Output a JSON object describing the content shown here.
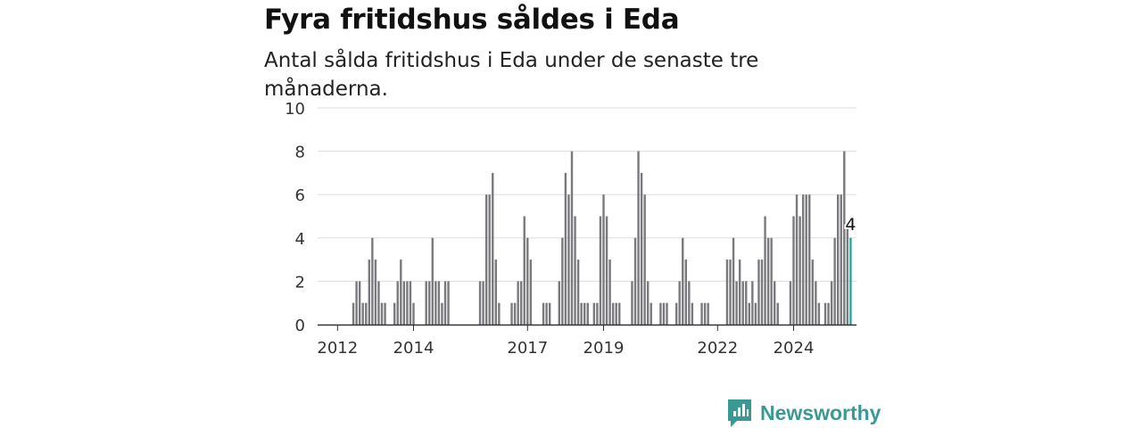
{
  "title": "Fyra fritidshus såldes i Eda",
  "subtitle": "Antal sålda fritidshus i Eda under de senaste tre månaderna.",
  "brand": "Newsworthy",
  "colors": {
    "bar": "#7a7a7e",
    "highlight": "#2aa39a",
    "brand": "#3a9a93",
    "grid": "#dddddd"
  },
  "chart_data": {
    "type": "bar",
    "title": "",
    "xlabel": "",
    "ylabel": "",
    "ylim": [
      0,
      10
    ],
    "yticks": [
      0,
      2,
      4,
      6,
      8,
      10
    ],
    "grid": true,
    "x_start": "2011-07",
    "x_step": "month",
    "xticks": [
      "2012",
      "2014",
      "2017",
      "2019",
      "2022",
      "2024"
    ],
    "highlight_label": "4",
    "values": [
      0,
      0,
      0,
      0,
      0,
      0,
      0,
      0,
      0,
      0,
      0,
      1,
      2,
      2,
      1,
      1,
      3,
      4,
      3,
      2,
      1,
      1,
      0,
      0,
      1,
      2,
      3,
      2,
      2,
      2,
      1,
      0,
      0,
      0,
      2,
      2,
      4,
      2,
      2,
      1,
      2,
      2,
      0,
      0,
      0,
      0,
      0,
      0,
      0,
      0,
      0,
      2,
      2,
      6,
      6,
      7,
      3,
      1,
      0,
      0,
      0,
      1,
      1,
      2,
      2,
      5,
      4,
      3,
      0,
      0,
      0,
      1,
      1,
      1,
      0,
      0,
      2,
      4,
      7,
      6,
      8,
      5,
      3,
      1,
      1,
      1,
      0,
      1,
      1,
      5,
      6,
      5,
      3,
      1,
      1,
      1,
      0,
      0,
      0,
      2,
      4,
      8,
      7,
      6,
      2,
      1,
      0,
      0,
      1,
      1,
      1,
      0,
      0,
      1,
      2,
      4,
      3,
      2,
      1,
      0,
      0,
      1,
      1,
      1,
      0,
      0,
      0,
      0,
      0,
      3,
      3,
      4,
      2,
      3,
      2,
      2,
      1,
      2,
      1,
      3,
      3,
      5,
      4,
      4,
      2,
      1,
      0,
      0,
      0,
      2,
      5,
      6,
      5,
      6,
      6,
      6,
      3,
      2,
      1,
      0,
      1,
      1,
      2,
      4,
      6,
      6,
      8,
      4.5,
      4
    ]
  }
}
